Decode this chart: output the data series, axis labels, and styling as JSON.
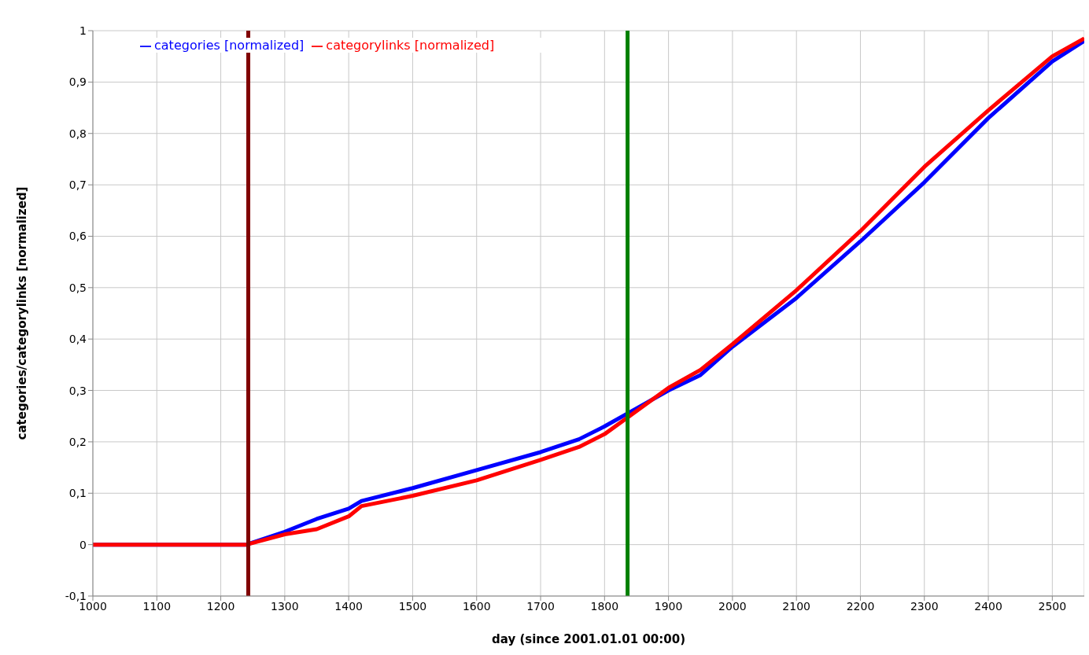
{
  "chart_data": {
    "type": "line",
    "xlabel": "day (since 2001.01.01 00:00)",
    "ylabel": "categories/categorylinks [normalized]",
    "xlim": [
      1000,
      2550
    ],
    "xticks": [
      1000,
      1100,
      1200,
      1300,
      1400,
      1500,
      1600,
      1700,
      1800,
      1900,
      2000,
      2100,
      2200,
      2300,
      2400,
      2500
    ],
    "ylim": [
      -0.1,
      1
    ],
    "yticks": [
      {
        "value": -0.1,
        "label": "-0,1"
      },
      0,
      {
        "value": 0.1,
        "label": "0,1"
      },
      {
        "value": 0.2,
        "label": "0,2"
      },
      {
        "value": 0.3,
        "label": "0,3"
      },
      {
        "value": 0.4,
        "label": "0,4"
      },
      {
        "value": 0.5,
        "label": "0,5"
      },
      {
        "value": 0.6,
        "label": "0,6"
      },
      {
        "value": 0.7,
        "label": "0,7"
      },
      {
        "value": 0.8,
        "label": "0,8"
      },
      {
        "value": 0.9,
        "label": "0,9"
      },
      1
    ],
    "x": [
      1000,
      1240,
      1300,
      1350,
      1400,
      1420,
      1500,
      1600,
      1700,
      1760,
      1800,
      1850,
      1900,
      1950,
      2000,
      2100,
      2200,
      2300,
      2400,
      2500,
      2550
    ],
    "series": [
      {
        "name": "categories [normalized]",
        "color": "#0000ff",
        "values": [
          0,
          0,
          0.025,
          0.05,
          0.07,
          0.085,
          0.11,
          0.145,
          0.18,
          0.205,
          0.23,
          0.265,
          0.3,
          0.33,
          0.385,
          0.48,
          0.59,
          0.705,
          0.83,
          0.94,
          0.98
        ]
      },
      {
        "name": "categorylinks [normalized]",
        "color": "#ff0000",
        "values": [
          0,
          0,
          0.02,
          0.03,
          0.055,
          0.075,
          0.095,
          0.125,
          0.165,
          0.19,
          0.215,
          0.26,
          0.305,
          0.34,
          0.39,
          0.495,
          0.61,
          0.735,
          0.845,
          0.95,
          0.985
        ]
      }
    ],
    "ref_lines": [
      {
        "axis": "x",
        "value": 1243,
        "color": "#800000"
      },
      {
        "axis": "x",
        "value": 1836,
        "color": "#008000"
      }
    ],
    "grid": true,
    "legend": "top left",
    "marker": "none",
    "line_style": "solid"
  }
}
